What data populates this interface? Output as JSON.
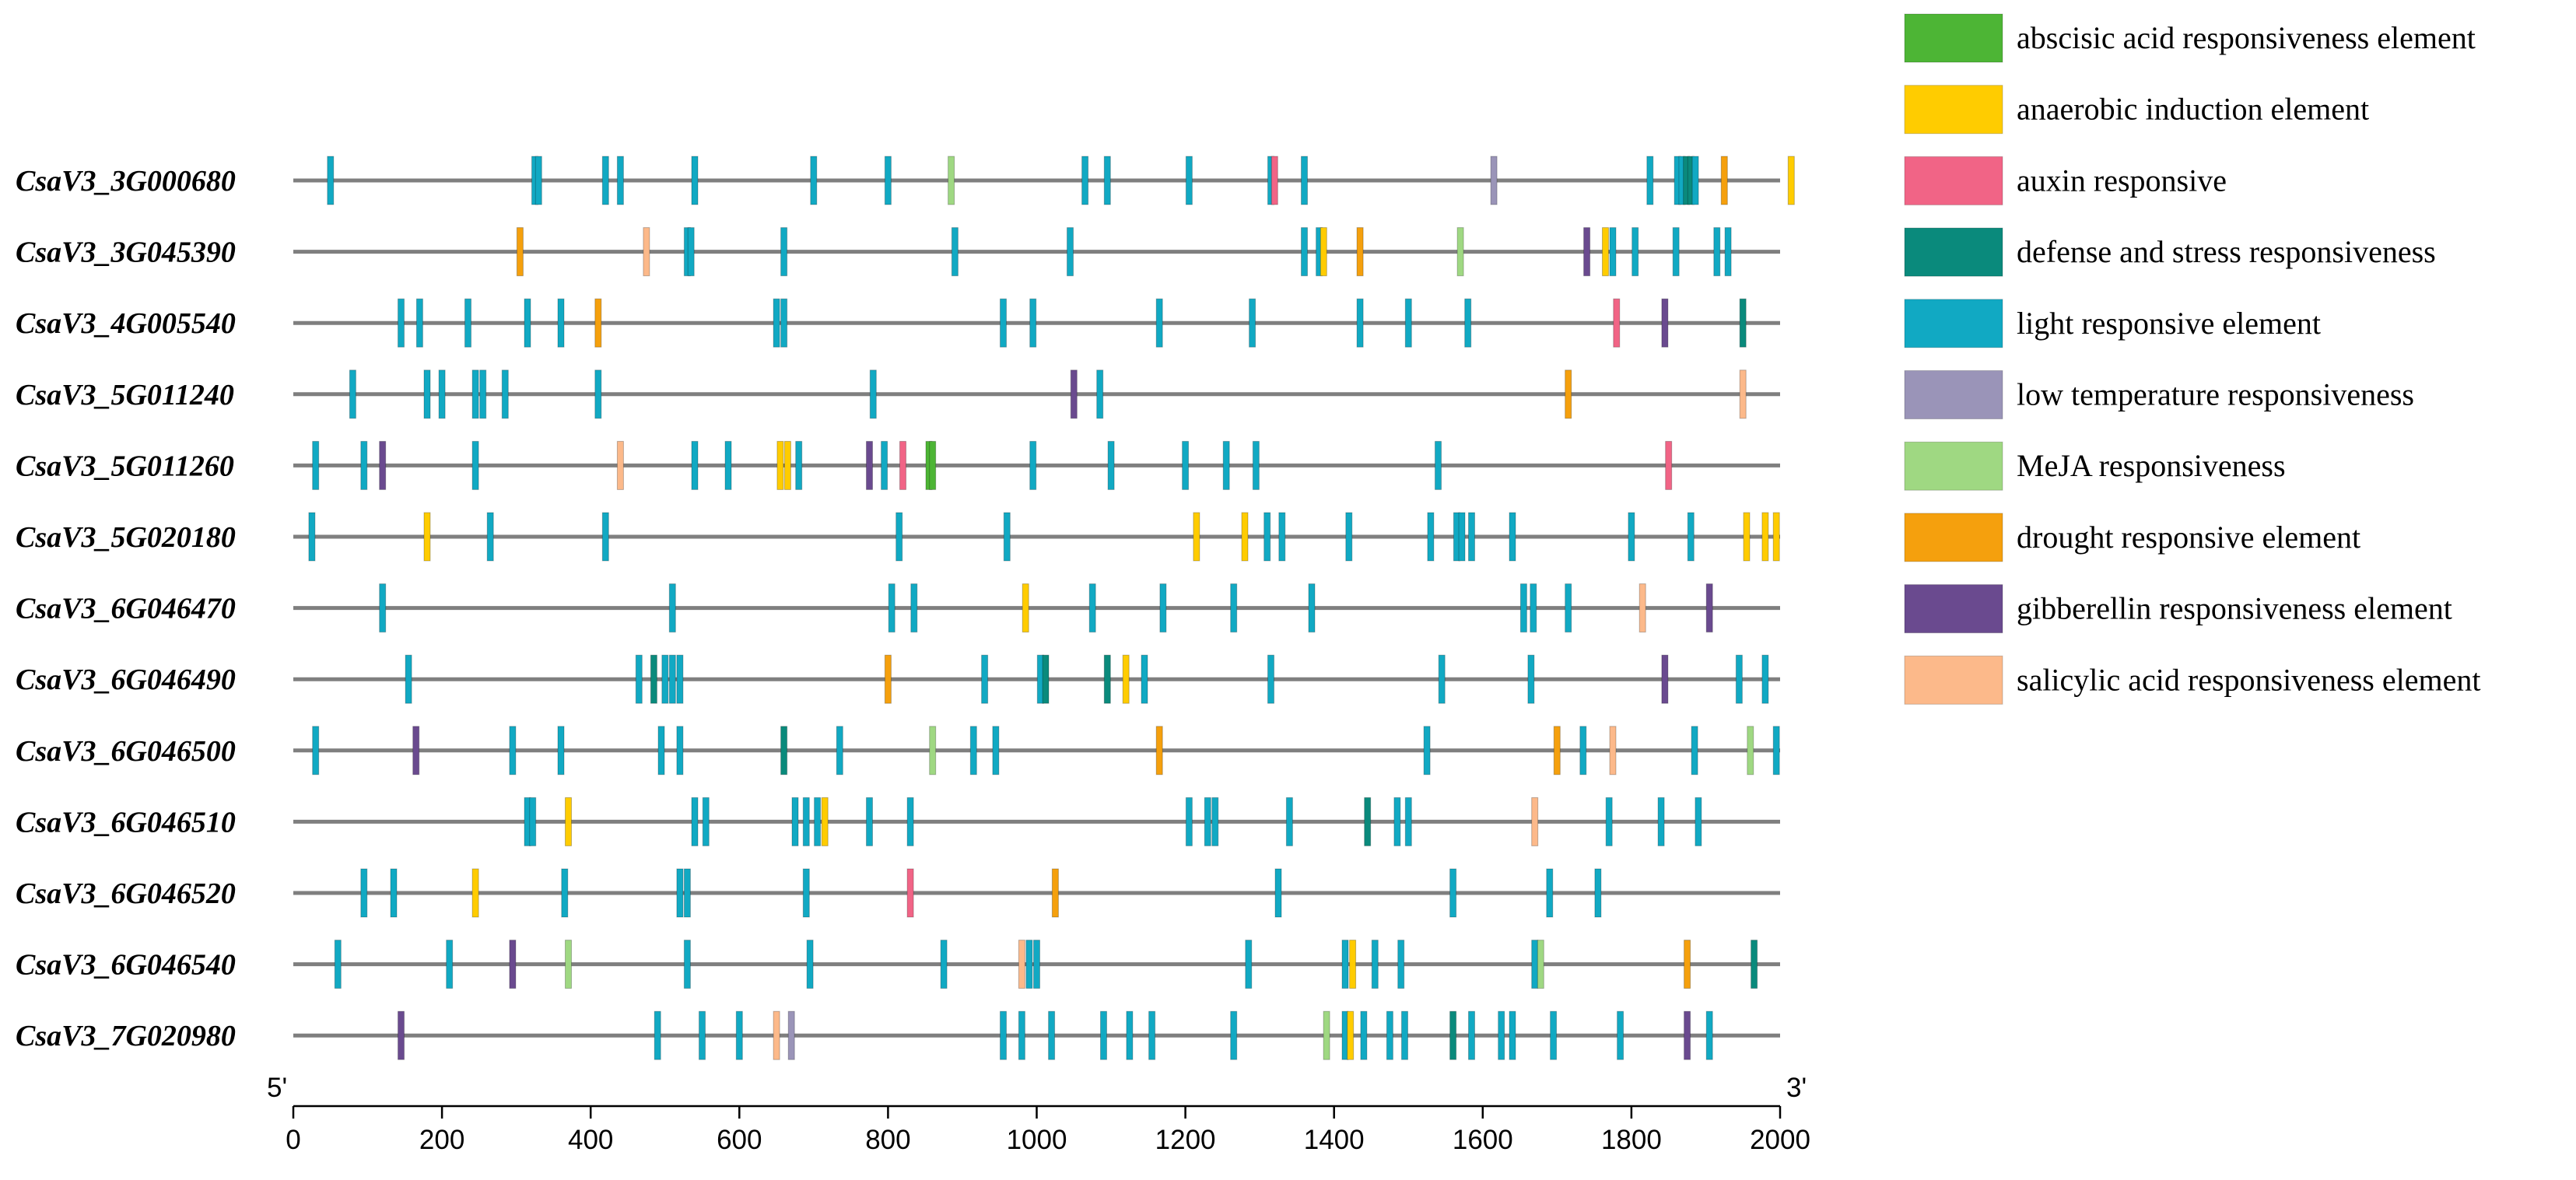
{
  "chart_data": {
    "type": "promoter-element-map",
    "axis": {
      "min": 0,
      "max": 2000,
      "ticks": [
        0,
        200,
        400,
        600,
        800,
        1000,
        1200,
        1400,
        1600,
        1800,
        2000
      ],
      "start_label": "5'",
      "end_label": "3'"
    },
    "element_types": [
      {
        "key": "aba",
        "name": "abscisic acid responsiveness element",
        "color": "#4db535"
      },
      {
        "key": "anaerobic",
        "name": "anaerobic induction element",
        "color": "#ffcc00"
      },
      {
        "key": "auxin",
        "name": "auxin responsive",
        "color": "#f16486"
      },
      {
        "key": "defense",
        "name": "defense and stress responsiveness",
        "color": "#0a8a7c"
      },
      {
        "key": "light",
        "name": "light responsive element",
        "color": "#11a9c3"
      },
      {
        "key": "lowtemp",
        "name": "low temperature responsiveness",
        "color": "#9a94b8"
      },
      {
        "key": "meja",
        "name": "MeJA responsiveness",
        "color": "#9fd882"
      },
      {
        "key": "drought",
        "name": "drought responsive element",
        "color": "#f5a00d"
      },
      {
        "key": "gibberellin",
        "name": "gibberellin responsiveness element",
        "color": "#6a4a8f"
      },
      {
        "key": "salicylic",
        "name": "salicylic acid responsiveness element",
        "color": "#fcb98a"
      }
    ],
    "genes": [
      {
        "name": "CsaV3_3G000680",
        "elements": [
          [
            50,
            "light"
          ],
          [
            325,
            "light"
          ],
          [
            330,
            "light"
          ],
          [
            420,
            "light"
          ],
          [
            440,
            "light"
          ],
          [
            540,
            "light"
          ],
          [
            700,
            "light"
          ],
          [
            800,
            "light"
          ],
          [
            885,
            "meja"
          ],
          [
            1065,
            "light"
          ],
          [
            1095,
            "light"
          ],
          [
            1205,
            "light"
          ],
          [
            1315,
            "light"
          ],
          [
            1320,
            "auxin"
          ],
          [
            1360,
            "light"
          ],
          [
            1615,
            "lowtemp"
          ],
          [
            1825,
            "light"
          ],
          [
            1862,
            "light"
          ],
          [
            1868,
            "light"
          ],
          [
            1874,
            "defense"
          ],
          [
            1880,
            "defense"
          ],
          [
            1886,
            "light"
          ],
          [
            1925,
            "drought"
          ],
          [
            2015,
            "anaerobic"
          ]
        ]
      },
      {
        "name": "CsaV3_3G045390",
        "elements": [
          [
            305,
            "drought"
          ],
          [
            475,
            "salicylic"
          ],
          [
            530,
            "light"
          ],
          [
            535,
            "light"
          ],
          [
            660,
            "light"
          ],
          [
            890,
            "light"
          ],
          [
            1045,
            "light"
          ],
          [
            1360,
            "light"
          ],
          [
            1380,
            "light"
          ],
          [
            1386,
            "anaerobic"
          ],
          [
            1435,
            "drought"
          ],
          [
            1570,
            "meja"
          ],
          [
            1740,
            "gibberellin"
          ],
          [
            1765,
            "anaerobic"
          ],
          [
            1775,
            "light"
          ],
          [
            1805,
            "light"
          ],
          [
            1860,
            "light"
          ],
          [
            1915,
            "light"
          ],
          [
            1930,
            "light"
          ]
        ]
      },
      {
        "name": "CsaV3_4G005540",
        "elements": [
          [
            145,
            "light"
          ],
          [
            170,
            "light"
          ],
          [
            235,
            "light"
          ],
          [
            315,
            "light"
          ],
          [
            360,
            "light"
          ],
          [
            410,
            "drought"
          ],
          [
            650,
            "light"
          ],
          [
            660,
            "light"
          ],
          [
            955,
            "light"
          ],
          [
            995,
            "light"
          ],
          [
            1165,
            "light"
          ],
          [
            1290,
            "light"
          ],
          [
            1435,
            "light"
          ],
          [
            1500,
            "light"
          ],
          [
            1580,
            "light"
          ],
          [
            1780,
            "auxin"
          ],
          [
            1845,
            "gibberellin"
          ],
          [
            1950,
            "defense"
          ]
        ]
      },
      {
        "name": "CsaV3_5G011240",
        "elements": [
          [
            80,
            "light"
          ],
          [
            180,
            "light"
          ],
          [
            200,
            "light"
          ],
          [
            245,
            "light"
          ],
          [
            255,
            "light"
          ],
          [
            285,
            "light"
          ],
          [
            410,
            "light"
          ],
          [
            780,
            "light"
          ],
          [
            1050,
            "gibberellin"
          ],
          [
            1085,
            "light"
          ],
          [
            1715,
            "drought"
          ],
          [
            1950,
            "salicylic"
          ]
        ]
      },
      {
        "name": "CsaV3_5G011260",
        "elements": [
          [
            30,
            "light"
          ],
          [
            95,
            "light"
          ],
          [
            120,
            "gibberellin"
          ],
          [
            245,
            "light"
          ],
          [
            440,
            "salicylic"
          ],
          [
            540,
            "light"
          ],
          [
            585,
            "light"
          ],
          [
            655,
            "anaerobic"
          ],
          [
            665,
            "anaerobic"
          ],
          [
            680,
            "light"
          ],
          [
            775,
            "gibberellin"
          ],
          [
            795,
            "light"
          ],
          [
            820,
            "auxin"
          ],
          [
            855,
            "aba"
          ],
          [
            860,
            "aba"
          ],
          [
            995,
            "light"
          ],
          [
            1100,
            "light"
          ],
          [
            1200,
            "light"
          ],
          [
            1255,
            "light"
          ],
          [
            1295,
            "light"
          ],
          [
            1540,
            "light"
          ],
          [
            1850,
            "auxin"
          ]
        ]
      },
      {
        "name": "CsaV3_5G020180",
        "elements": [
          [
            25,
            "light"
          ],
          [
            180,
            "anaerobic"
          ],
          [
            265,
            "light"
          ],
          [
            420,
            "light"
          ],
          [
            815,
            "light"
          ],
          [
            960,
            "light"
          ],
          [
            1215,
            "anaerobic"
          ],
          [
            1280,
            "anaerobic"
          ],
          [
            1310,
            "light"
          ],
          [
            1330,
            "light"
          ],
          [
            1420,
            "light"
          ],
          [
            1530,
            "light"
          ],
          [
            1565,
            "light"
          ],
          [
            1572,
            "light"
          ],
          [
            1585,
            "light"
          ],
          [
            1640,
            "light"
          ],
          [
            1800,
            "light"
          ],
          [
            1880,
            "light"
          ],
          [
            1955,
            "anaerobic"
          ],
          [
            1980,
            "anaerobic"
          ],
          [
            1995,
            "anaerobic"
          ]
        ]
      },
      {
        "name": "CsaV3_6G046470",
        "elements": [
          [
            120,
            "light"
          ],
          [
            510,
            "light"
          ],
          [
            805,
            "light"
          ],
          [
            835,
            "light"
          ],
          [
            985,
            "anaerobic"
          ],
          [
            1075,
            "light"
          ],
          [
            1170,
            "light"
          ],
          [
            1265,
            "light"
          ],
          [
            1370,
            "light"
          ],
          [
            1655,
            "light"
          ],
          [
            1668,
            "light"
          ],
          [
            1715,
            "light"
          ],
          [
            1815,
            "salicylic"
          ],
          [
            1905,
            "gibberellin"
          ]
        ]
      },
      {
        "name": "CsaV3_6G046490",
        "elements": [
          [
            155,
            "light"
          ],
          [
            465,
            "light"
          ],
          [
            485,
            "defense"
          ],
          [
            500,
            "light"
          ],
          [
            510,
            "light"
          ],
          [
            520,
            "light"
          ],
          [
            800,
            "drought"
          ],
          [
            930,
            "light"
          ],
          [
            1005,
            "light"
          ],
          [
            1012,
            "defense"
          ],
          [
            1095,
            "defense"
          ],
          [
            1120,
            "anaerobic"
          ],
          [
            1145,
            "light"
          ],
          [
            1315,
            "light"
          ],
          [
            1545,
            "light"
          ],
          [
            1665,
            "light"
          ],
          [
            1845,
            "gibberellin"
          ],
          [
            1945,
            "light"
          ],
          [
            1980,
            "light"
          ]
        ]
      },
      {
        "name": "CsaV3_6G046500",
        "elements": [
          [
            30,
            "light"
          ],
          [
            165,
            "gibberellin"
          ],
          [
            295,
            "light"
          ],
          [
            360,
            "light"
          ],
          [
            495,
            "light"
          ],
          [
            520,
            "light"
          ],
          [
            660,
            "defense"
          ],
          [
            735,
            "light"
          ],
          [
            860,
            "meja"
          ],
          [
            915,
            "light"
          ],
          [
            945,
            "light"
          ],
          [
            1165,
            "drought"
          ],
          [
            1525,
            "light"
          ],
          [
            1700,
            "drought"
          ],
          [
            1735,
            "light"
          ],
          [
            1775,
            "salicylic"
          ],
          [
            1885,
            "light"
          ],
          [
            1960,
            "meja"
          ],
          [
            1995,
            "light"
          ]
        ]
      },
      {
        "name": "CsaV3_6G046510",
        "elements": [
          [
            315,
            "light"
          ],
          [
            322,
            "light"
          ],
          [
            370,
            "anaerobic"
          ],
          [
            540,
            "light"
          ],
          [
            555,
            "light"
          ],
          [
            675,
            "light"
          ],
          [
            690,
            "light"
          ],
          [
            705,
            "light"
          ],
          [
            715,
            "anaerobic"
          ],
          [
            775,
            "light"
          ],
          [
            830,
            "light"
          ],
          [
            1205,
            "light"
          ],
          [
            1230,
            "light"
          ],
          [
            1240,
            "light"
          ],
          [
            1340,
            "light"
          ],
          [
            1445,
            "defense"
          ],
          [
            1485,
            "light"
          ],
          [
            1500,
            "light"
          ],
          [
            1670,
            "salicylic"
          ],
          [
            1770,
            "light"
          ],
          [
            1840,
            "light"
          ],
          [
            1890,
            "light"
          ]
        ]
      },
      {
        "name": "CsaV3_6G046520",
        "elements": [
          [
            95,
            "light"
          ],
          [
            135,
            "light"
          ],
          [
            245,
            "anaerobic"
          ],
          [
            365,
            "light"
          ],
          [
            520,
            "light"
          ],
          [
            530,
            "light"
          ],
          [
            690,
            "light"
          ],
          [
            830,
            "auxin"
          ],
          [
            1025,
            "drought"
          ],
          [
            1325,
            "light"
          ],
          [
            1560,
            "light"
          ],
          [
            1690,
            "light"
          ],
          [
            1755,
            "light"
          ]
        ]
      },
      {
        "name": "CsaV3_6G046540",
        "elements": [
          [
            60,
            "light"
          ],
          [
            210,
            "light"
          ],
          [
            295,
            "gibberellin"
          ],
          [
            370,
            "meja"
          ],
          [
            530,
            "light"
          ],
          [
            695,
            "light"
          ],
          [
            875,
            "light"
          ],
          [
            980,
            "salicylic"
          ],
          [
            990,
            "light"
          ],
          [
            1000,
            "light"
          ],
          [
            1285,
            "light"
          ],
          [
            1415,
            "light"
          ],
          [
            1425,
            "anaerobic"
          ],
          [
            1455,
            "light"
          ],
          [
            1490,
            "light"
          ],
          [
            1670,
            "light"
          ],
          [
            1678,
            "meja"
          ],
          [
            1875,
            "drought"
          ],
          [
            1965,
            "defense"
          ]
        ]
      },
      {
        "name": "CsaV3_7G020980",
        "elements": [
          [
            145,
            "gibberellin"
          ],
          [
            490,
            "light"
          ],
          [
            550,
            "light"
          ],
          [
            600,
            "light"
          ],
          [
            650,
            "salicylic"
          ],
          [
            670,
            "lowtemp"
          ],
          [
            955,
            "light"
          ],
          [
            980,
            "light"
          ],
          [
            1020,
            "light"
          ],
          [
            1090,
            "light"
          ],
          [
            1125,
            "light"
          ],
          [
            1155,
            "light"
          ],
          [
            1265,
            "light"
          ],
          [
            1390,
            "meja"
          ],
          [
            1415,
            "light"
          ],
          [
            1422,
            "anaerobic"
          ],
          [
            1440,
            "light"
          ],
          [
            1475,
            "light"
          ],
          [
            1495,
            "light"
          ],
          [
            1560,
            "defense"
          ],
          [
            1585,
            "light"
          ],
          [
            1625,
            "light"
          ],
          [
            1640,
            "light"
          ],
          [
            1695,
            "light"
          ],
          [
            1785,
            "light"
          ],
          [
            1875,
            "gibberellin"
          ],
          [
            1905,
            "light"
          ]
        ]
      }
    ]
  }
}
